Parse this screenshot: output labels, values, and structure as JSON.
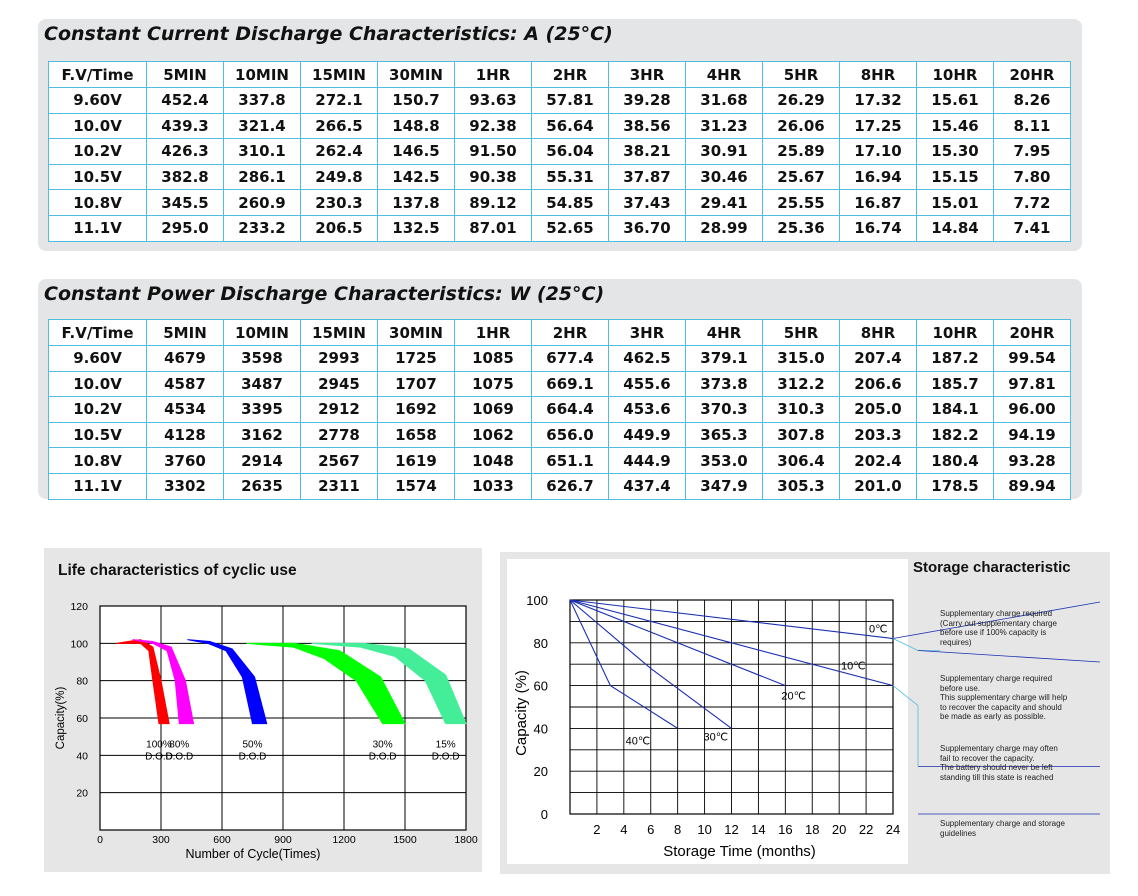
{
  "current_table": {
    "title": "Constant Current Discharge Characteristics: A (25°C)",
    "headers": [
      "F.V/Time",
      "5MIN",
      "10MIN",
      "15MIN",
      "30MIN",
      "1HR",
      "2HR",
      "3HR",
      "4HR",
      "5HR",
      "8HR",
      "10HR",
      "20HR"
    ],
    "rows": [
      [
        "9.60V",
        "452.4",
        "337.8",
        "272.1",
        "150.7",
        "93.63",
        "57.81",
        "39.28",
        "31.68",
        "26.29",
        "17.32",
        "15.61",
        "8.26"
      ],
      [
        "10.0V",
        "439.3",
        "321.4",
        "266.5",
        "148.8",
        "92.38",
        "56.64",
        "38.56",
        "31.23",
        "26.06",
        "17.25",
        "15.46",
        "8.11"
      ],
      [
        "10.2V",
        "426.3",
        "310.1",
        "262.4",
        "146.5",
        "91.50",
        "56.04",
        "38.21",
        "30.91",
        "25.89",
        "17.10",
        "15.30",
        "7.95"
      ],
      [
        "10.5V",
        "382.8",
        "286.1",
        "249.8",
        "142.5",
        "90.38",
        "55.31",
        "37.87",
        "30.46",
        "25.67",
        "16.94",
        "15.15",
        "7.80"
      ],
      [
        "10.8V",
        "345.5",
        "260.9",
        "230.3",
        "137.8",
        "89.12",
        "54.85",
        "37.43",
        "29.41",
        "25.55",
        "16.87",
        "15.01",
        "7.72"
      ],
      [
        "11.1V",
        "295.0",
        "233.2",
        "206.5",
        "132.5",
        "87.01",
        "52.65",
        "36.70",
        "28.99",
        "25.36",
        "16.74",
        "14.84",
        "7.41"
      ]
    ]
  },
  "power_table": {
    "title": "Constant Power Discharge Characteristics: W (25°C)",
    "headers": [
      "F.V/Time",
      "5MIN",
      "10MIN",
      "15MIN",
      "30MIN",
      "1HR",
      "2HR",
      "3HR",
      "4HR",
      "5HR",
      "8HR",
      "10HR",
      "20HR"
    ],
    "rows": [
      [
        "9.60V",
        "4679",
        "3598",
        "2993",
        "1725",
        "1085",
        "677.4",
        "462.5",
        "379.1",
        "315.0",
        "207.4",
        "187.2",
        "99.54"
      ],
      [
        "10.0V",
        "4587",
        "3487",
        "2945",
        "1707",
        "1075",
        "669.1",
        "455.6",
        "373.8",
        "312.2",
        "206.6",
        "185.7",
        "97.81"
      ],
      [
        "10.2V",
        "4534",
        "3395",
        "2912",
        "1692",
        "1069",
        "664.4",
        "453.6",
        "370.3",
        "310.3",
        "205.0",
        "184.1",
        "96.00"
      ],
      [
        "10.5V",
        "4128",
        "3162",
        "2778",
        "1658",
        "1062",
        "656.0",
        "449.9",
        "365.3",
        "307.8",
        "203.3",
        "182.2",
        "94.19"
      ],
      [
        "10.8V",
        "3760",
        "2914",
        "2567",
        "1619",
        "1048",
        "651.1",
        "444.9",
        "353.0",
        "306.4",
        "202.4",
        "180.4",
        "93.28"
      ],
      [
        "11.1V",
        "3302",
        "2635",
        "2311",
        "1574",
        "1033",
        "626.7",
        "437.4",
        "347.9",
        "305.3",
        "201.0",
        "178.5",
        "89.94"
      ]
    ]
  },
  "chart_data": [
    {
      "type": "area",
      "title": "Life characteristics of cyclic use",
      "xlabel": "Number of Cycle(Times)",
      "ylabel": "Capacity(%)",
      "xlim": [
        0,
        1800
      ],
      "ylim": [
        0,
        120
      ],
      "xticks": [
        "0",
        "300",
        "600",
        "900",
        "1200",
        "1500",
        "1800"
      ],
      "yticks": [
        "20",
        "40",
        "60",
        "80",
        "100",
        "120"
      ],
      "grid": true,
      "series": [
        {
          "name": "100% D.O.D",
          "label_pct": "100%",
          "label_dod": "D.O.D",
          "color": "#ff0000",
          "upper": [
            [
              80,
              100
            ],
            [
              200,
              102
            ],
            [
              260,
              98
            ],
            [
              300,
              80
            ],
            [
              340,
              57
            ]
          ],
          "lower": [
            [
              80,
              100
            ],
            [
              200,
              100
            ],
            [
              240,
              96
            ],
            [
              260,
              80
            ],
            [
              290,
              57
            ]
          ]
        },
        {
          "name": "80% D.O.D",
          "label_pct": "80%",
          "label_dod": "D.O.D",
          "color": "#ff00ff",
          "upper": [
            [
              160,
              102
            ],
            [
              260,
              101
            ],
            [
              350,
              98
            ],
            [
              420,
              80
            ],
            [
              460,
              57
            ]
          ],
          "lower": [
            [
              160,
              102
            ],
            [
              260,
              100
            ],
            [
              330,
              96
            ],
            [
              370,
              80
            ],
            [
              390,
              57
            ]
          ]
        },
        {
          "name": "50% D.O.D",
          "label_pct": "50%",
          "label_dod": "D.O.D",
          "color": "#0000ff",
          "upper": [
            [
              430,
              102
            ],
            [
              540,
              101
            ],
            [
              650,
              97
            ],
            [
              760,
              82
            ],
            [
              820,
              57
            ]
          ],
          "lower": [
            [
              430,
              102
            ],
            [
              530,
              100
            ],
            [
              620,
              96
            ],
            [
              700,
              82
            ],
            [
              750,
              57
            ]
          ]
        },
        {
          "name": "30% D.O.D",
          "label_pct": "30%",
          "label_dod": "D.O.D",
          "color": "#00ff00",
          "upper": [
            [
              720,
              100
            ],
            [
              960,
              100
            ],
            [
              1180,
              96
            ],
            [
              1380,
              82
            ],
            [
              1500,
              57
            ]
          ],
          "lower": [
            [
              720,
              100
            ],
            [
              950,
              98
            ],
            [
              1100,
              92
            ],
            [
              1260,
              80
            ],
            [
              1390,
              57
            ]
          ]
        },
        {
          "name": "15% D.O.D",
          "label_pct": "15%",
          "label_dod": "D.O.D",
          "color": "#44ee99",
          "upper": [
            [
              1040,
              100
            ],
            [
              1300,
              100
            ],
            [
              1520,
              97
            ],
            [
              1700,
              83
            ],
            [
              1800,
              57
            ]
          ],
          "lower": [
            [
              1040,
              100
            ],
            [
              1280,
              98
            ],
            [
              1450,
              93
            ],
            [
              1600,
              80
            ],
            [
              1700,
              57
            ]
          ]
        }
      ]
    },
    {
      "type": "line",
      "title": "Storage characteristic",
      "xlabel": "Storage Time (months)",
      "ylabel": "Capacity (%)",
      "xlim": [
        0,
        24
      ],
      "ylim": [
        0,
        100
      ],
      "xticks": [
        "2",
        "4",
        "6",
        "8",
        "10",
        "12",
        "14",
        "16",
        "18",
        "20",
        "22",
        "24"
      ],
      "yticks": [
        "0",
        "20",
        "40",
        "60",
        "80",
        "100"
      ],
      "grid": true,
      "series": [
        {
          "name": "0℃",
          "x": [
            0,
            24
          ],
          "y": [
            100,
            82
          ]
        },
        {
          "name": "10℃",
          "x": [
            0,
            24
          ],
          "y": [
            100,
            60
          ]
        },
        {
          "name": "20℃",
          "x": [
            0,
            16
          ],
          "y": [
            100,
            60
          ]
        },
        {
          "name": "30℃",
          "x": [
            0,
            6,
            12
          ],
          "y": [
            100,
            68,
            40
          ]
        },
        {
          "name": "40℃",
          "x": [
            0,
            3,
            8
          ],
          "y": [
            100,
            60,
            40
          ]
        }
      ]
    }
  ],
  "storage_notes": [
    "Supplementary charge required\n(Carry out supplementary charge\nbefore use if 100% capacity is\nrequires)",
    "Supplementary charge required\nbefore use.\nThis supplementary charge will help\nto recover the capacity and should\nbe made as early as possible.",
    "Supplementary charge may often\nfail to recover the capacity.\nThe battery should never be left\nstanding till this state is reached",
    "Supplementary charge and storage\nguidelines"
  ],
  "colors": {
    "table_border": "#4fbde0",
    "panel_bg": "#e4e5e7",
    "storage_line": "#1a2fb0"
  }
}
